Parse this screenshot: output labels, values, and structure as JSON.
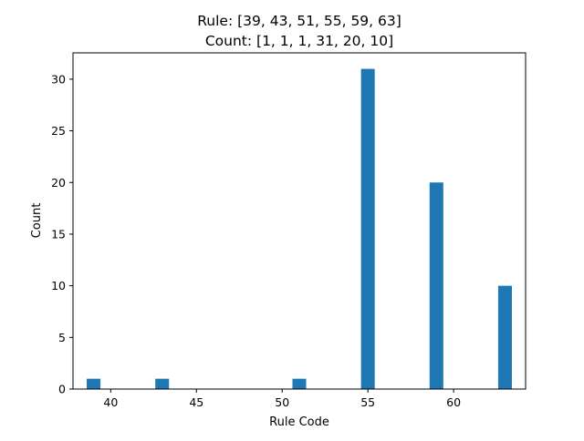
{
  "chart_data": {
    "type": "bar",
    "title": [
      "Rule: [39, 43, 51, 55, 59, 63]",
      "Count: [1, 1, 1, 31, 20, 10]"
    ],
    "xlabel": "Rule Code",
    "ylabel": "Count",
    "x": [
      39,
      43,
      51,
      55,
      59,
      63
    ],
    "values": [
      1,
      1,
      1,
      31,
      20,
      10
    ],
    "bar_width": 0.8,
    "xlim": [
      37.8,
      64.2
    ],
    "ylim": [
      0,
      32.55
    ],
    "xticks": [
      40,
      45,
      50,
      55,
      60
    ],
    "yticks": [
      0,
      5,
      10,
      15,
      20,
      25,
      30
    ],
    "grid": false,
    "legend": "none",
    "bar_color": "#1f77b4"
  }
}
